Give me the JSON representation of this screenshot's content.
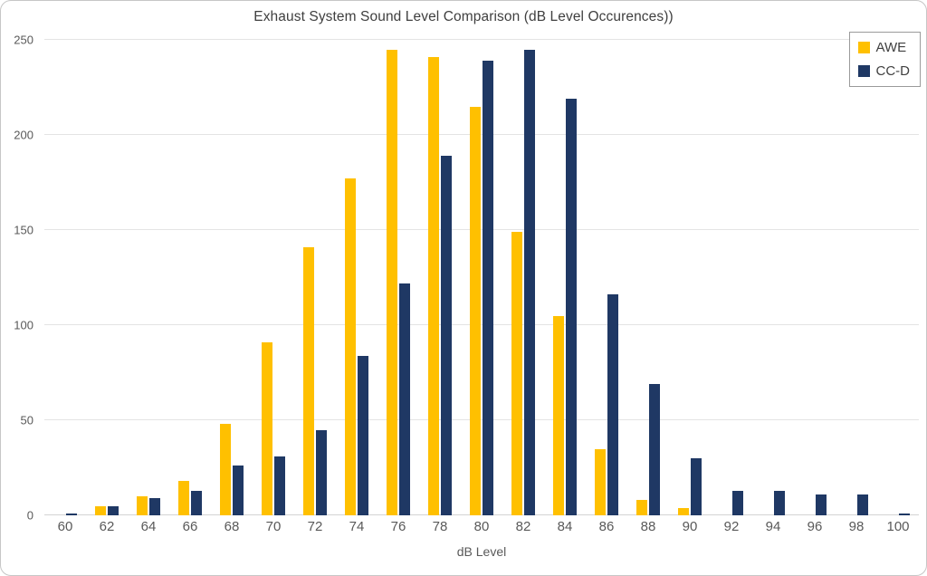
{
  "colors": {
    "card_border": "#c6c6c6",
    "gridline": "#e4e4e4",
    "baseline": "#d4d4d4",
    "title_text": "#3f3f3f",
    "axis_text": "#595959",
    "legend_border": "#9a9a9a",
    "legend_text": "#404040"
  },
  "chart_data": {
    "type": "bar",
    "title": "Exhaust System Sound Level Comparison (dB Level Occurences))",
    "xlabel": "dB Level",
    "ylabel": "",
    "ylim": [
      0,
      250
    ],
    "yticks": [
      0,
      50,
      100,
      150,
      200,
      250
    ],
    "grid": true,
    "legend_position": "top-right",
    "categories": [
      60,
      62,
      64,
      66,
      68,
      70,
      72,
      74,
      76,
      78,
      80,
      82,
      84,
      86,
      88,
      90,
      92,
      94,
      96,
      98,
      100
    ],
    "series": [
      {
        "name": "AWE",
        "color": "#FFC000",
        "values": [
          0,
          5,
          10,
          18,
          48,
          91,
          141,
          177,
          245,
          241,
          215,
          149,
          105,
          35,
          8,
          4,
          0,
          0,
          0,
          0,
          0
        ]
      },
      {
        "name": "CC-D",
        "color": "#1F3864",
        "values": [
          1,
          5,
          9,
          13,
          26,
          31,
          45,
          84,
          122,
          189,
          239,
          245,
          219,
          116,
          69,
          30,
          13,
          13,
          11,
          11,
          1
        ]
      }
    ]
  }
}
